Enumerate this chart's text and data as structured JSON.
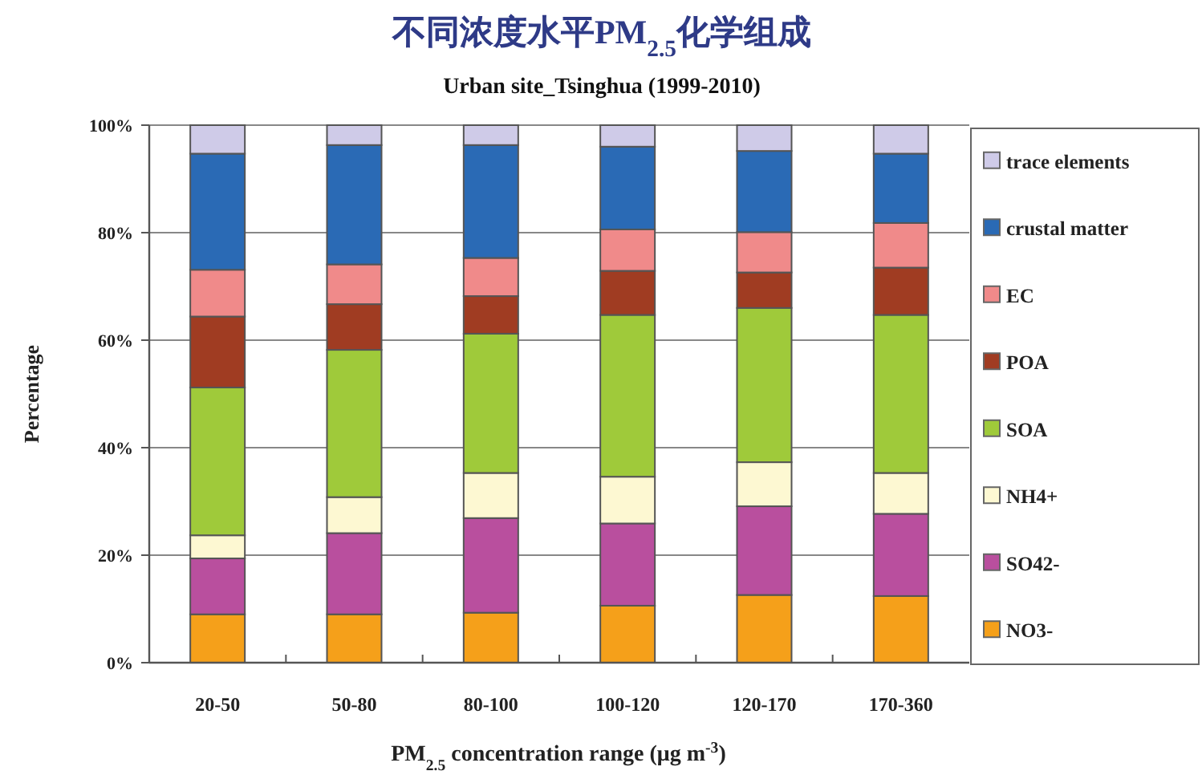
{
  "chart_data": {
    "type": "bar",
    "stacked": true,
    "title": "不同浓度水平PM$_{2.5}$化学组成",
    "subtitle": "Urban site_Tsinghua (1999-2010)",
    "xlabel": "PM$_{2.5}$ concentration range (μg m$^{-3}$)",
    "ylabel": "Percentage",
    "categories": [
      "20-50",
      "50-80",
      "80-100",
      "100-120",
      "120-170",
      "170-360"
    ],
    "series": [
      {
        "name": "NO3-",
        "color": "#f5a01a",
        "values": [
          9.0,
          9.0,
          9.3,
          10.6,
          12.6,
          12.4
        ]
      },
      {
        "name": "SO42-",
        "color": "#b94f9e",
        "values": [
          10.4,
          15.1,
          17.6,
          15.3,
          16.5,
          15.3
        ]
      },
      {
        "name": "NH4+",
        "color": "#fdf8d2",
        "values": [
          4.3,
          6.7,
          8.4,
          8.7,
          8.2,
          7.6
        ]
      },
      {
        "name": "SOA",
        "color": "#9fca3a",
        "values": [
          27.5,
          27.4,
          25.9,
          30.1,
          28.7,
          29.4
        ]
      },
      {
        "name": "POA",
        "color": "#a03c22",
        "values": [
          13.2,
          8.5,
          7.0,
          8.2,
          6.6,
          8.8
        ]
      },
      {
        "name": "EC",
        "color": "#f08a8a",
        "values": [
          8.7,
          7.4,
          7.1,
          7.7,
          7.5,
          8.3
        ]
      },
      {
        "name": "crustal matter",
        "color": "#2a6ab5",
        "values": [
          21.6,
          22.2,
          21.0,
          15.4,
          15.1,
          12.9
        ]
      },
      {
        "name": "trace elements",
        "color": "#cfcbe8",
        "values": [
          5.3,
          3.7,
          3.7,
          4.0,
          4.8,
          5.3
        ]
      }
    ],
    "ylim": [
      0,
      100
    ],
    "yticks": [
      {
        "value": 0,
        "label": "0%"
      },
      {
        "value": 20,
        "label": "20%"
      },
      {
        "value": 40,
        "label": "40%"
      },
      {
        "value": 60,
        "label": "60%"
      },
      {
        "value": 80,
        "label": "80%"
      },
      {
        "value": 100,
        "label": "100%"
      }
    ],
    "grid": "y",
    "legend": "right"
  }
}
